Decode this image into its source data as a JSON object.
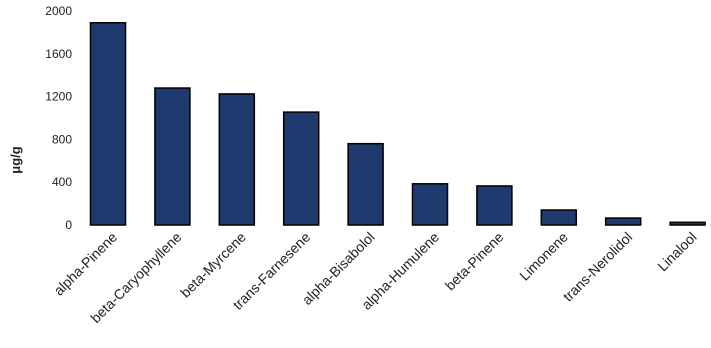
{
  "chart_data": {
    "type": "bar",
    "title": "",
    "xlabel": "",
    "ylabel": "μg/g",
    "ylim": [
      0,
      2000
    ],
    "yticks": [
      0,
      400,
      800,
      1200,
      1600,
      2000
    ],
    "grid": false,
    "legend": "none",
    "bar_color": "#1f3a6e",
    "categories": [
      "alpha-Pinene",
      "beta-Caryophyllene",
      "beta-Myrcene",
      "trans-Farnesene",
      "alpha-Bisabolol",
      "alpha-Humulene",
      "beta-Pinene",
      "Limonene",
      "trans-Nerolidol",
      "Linalool"
    ],
    "values": [
      1890,
      1280,
      1225,
      1055,
      760,
      385,
      365,
      140,
      65,
      25
    ]
  }
}
